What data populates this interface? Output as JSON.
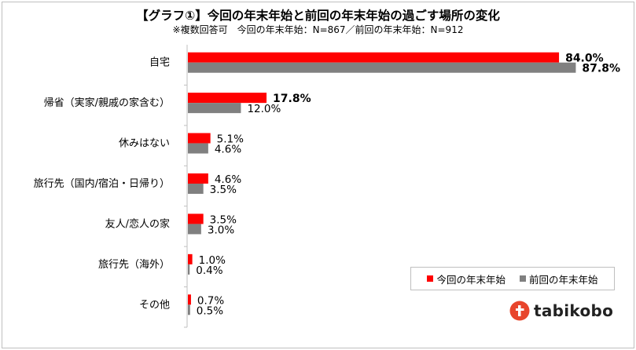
{
  "header": {
    "title": "【グラフ①】今回の年末年始と前回の年末年始の過ごす場所の変化",
    "subtitle": "※複数回答可　今回の年末年始：N=867／前回の年末年始：N=912"
  },
  "brand": {
    "name": "tabikobo",
    "logo_icon": "tabikobo-logo-icon"
  },
  "colors": {
    "current": "#ff0000",
    "previous": "#808080",
    "axis": "#bfbfbf"
  },
  "chart_data": {
    "type": "bar",
    "orientation": "horizontal",
    "title": "【グラフ①】今回の年末年始と前回の年末年始の過ごす場所の変化",
    "subtitle": "※複数回答可　今回の年末年始：N=867／前回の年末年始：N=912",
    "categories": [
      "自宅",
      "帰省（実家/親戚の家含む）",
      "休みはない",
      "旅行先（国内/宿泊・日帰り）",
      "友人/恋人の家",
      "旅行先（海外）",
      "その他"
    ],
    "series": [
      {
        "name": "今回の年末年始",
        "color": "#ff0000",
        "values": [
          84.0,
          17.8,
          5.1,
          4.6,
          3.5,
          1.0,
          0.7
        ],
        "labels": [
          "84.0%",
          "17.8%",
          "5.1%",
          "4.6%",
          "3.5%",
          "1.0%",
          "0.7%"
        ]
      },
      {
        "name": "前回の年末年始",
        "color": "#808080",
        "values": [
          87.8,
          12.0,
          4.6,
          3.5,
          3.0,
          0.4,
          0.5
        ],
        "labels": [
          "87.8%",
          "12.0%",
          "4.6%",
          "3.5%",
          "3.0%",
          "0.4%",
          "0.5%"
        ]
      }
    ],
    "xlim": [
      0,
      100
    ],
    "grid": false,
    "legend_position": "bottom-right"
  }
}
